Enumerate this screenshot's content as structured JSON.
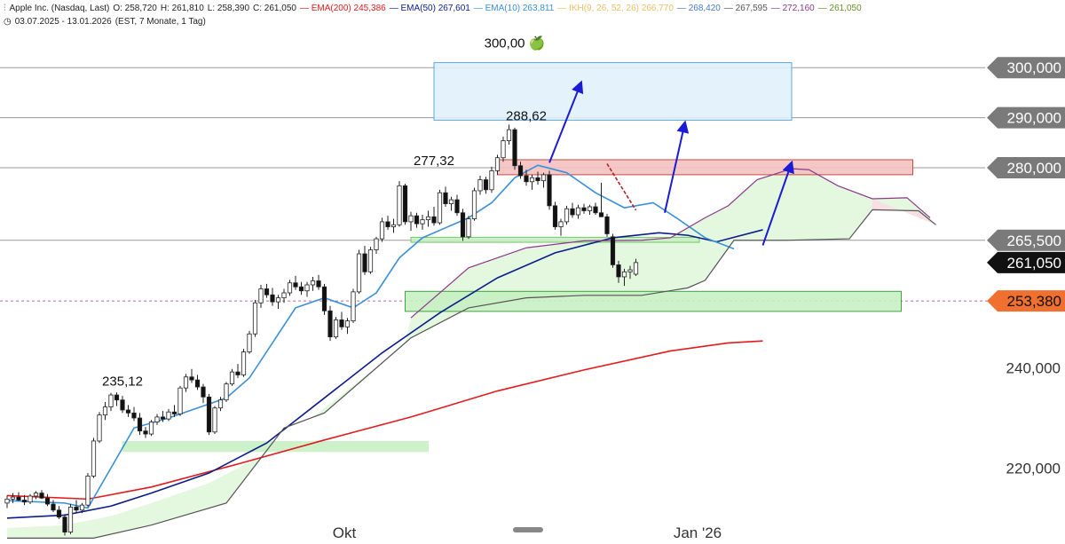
{
  "header": {
    "instrument": "Apple Inc. (Nasdaq, Last)",
    "open": "O: 258,720",
    "high": "H: 261,810",
    "low": "L: 258,390",
    "close": "C: 261,050",
    "indicators": [
      {
        "label": "EMA(200)",
        "value": "245,386",
        "color": "#e31a1c"
      },
      {
        "label": "EMA(50)",
        "value": "267,601",
        "color": "#0c1d8a"
      },
      {
        "label": "EMA(10)",
        "value": "263,811",
        "color": "#3a8fd9"
      },
      {
        "label": "IKH(9, 26, 52, 26)",
        "value": "266,770",
        "color": "#e8c067"
      },
      {
        "label": "268,420",
        "value": "",
        "color": "#4a7bc8"
      },
      {
        "label": "267,595",
        "value": "",
        "color": "#555555"
      },
      {
        "label": "272,160",
        "value": "",
        "color": "#8b3a8b"
      },
      {
        "label": "261,050",
        "value": "",
        "color": "#6a8f2a"
      }
    ],
    "range": "03.07.2025 - 13.01.2026",
    "settings": "(EST, 7 Monate, 1 Tag)"
  },
  "chart_data": {
    "type": "candlestick",
    "title": "Apple Inc. (Nasdaq, Last)",
    "ylim": [
      205,
      305
    ],
    "y_ticks": [
      {
        "label": "300,000",
        "value": 300,
        "style": "grey"
      },
      {
        "label": "290,000",
        "value": 290,
        "style": "grey"
      },
      {
        "label": "280,000",
        "value": 280,
        "style": "grey"
      },
      {
        "label": "265,500",
        "value": 265.5,
        "style": "grey"
      },
      {
        "label": "261,050",
        "value": 261.05,
        "style": "black"
      },
      {
        "label": "253,380",
        "value": 253.38,
        "style": "orange"
      },
      {
        "label": "240,000",
        "value": 240,
        "style": "plain"
      },
      {
        "label": "220,000",
        "value": 220,
        "style": "plain"
      }
    ],
    "x_ticks": [
      "Okt",
      "Jan '26"
    ],
    "horizontal_lines": [
      300,
      290,
      280,
      265.5
    ],
    "annotations": [
      {
        "text": "300,00 🍏",
        "x": 88,
        "y": 304
      },
      {
        "text": "288,62",
        "x": 90,
        "y": 289.5
      },
      {
        "text": "277,32",
        "x": 74,
        "y": 280.5
      },
      {
        "text": "235,12",
        "x": 20,
        "y": 236.5
      }
    ],
    "zones": [
      {
        "name": "target",
        "x0": 74,
        "x1": 136,
        "y0": 289.5,
        "y1": 301,
        "color": "#e2f1fb",
        "stroke": "#4aa3df"
      },
      {
        "name": "resistance",
        "x0": 85,
        "x1": 157,
        "y0": 278.6,
        "y1": 281.6,
        "color": "#f4c2c2",
        "stroke": "#c0392b"
      },
      {
        "name": "support-upper",
        "x0": 70,
        "x1": 120,
        "y0": 265.1,
        "y1": 266.1,
        "color": "#c8f0c3",
        "stroke": "#6abf5e"
      },
      {
        "name": "support-lower",
        "x0": 69,
        "x1": 155,
        "y0": 251.3,
        "y1": 255.3,
        "color": "#c8f0c3",
        "stroke": "#2e9a2e"
      },
      {
        "name": "old-support",
        "x0": 20,
        "x1": 73,
        "y0": 223.3,
        "y1": 225.3,
        "color": "#c8f0c3",
        "stroke": "#c8f0c3"
      }
    ],
    "arrows": [
      {
        "x0": 94,
        "y0": 281,
        "x1": 99.5,
        "y1": 297,
        "color": "#1b1bd6"
      },
      {
        "x0": 114,
        "y0": 271,
        "x1": 117.5,
        "y1": 289,
        "color": "#1b1bd6"
      },
      {
        "x0": 131,
        "y0": 264.5,
        "x1": 136,
        "y1": 281,
        "color": "#1b1bd6"
      }
    ],
    "candles": [
      [
        213.0,
        214.5,
        212.0,
        213.8
      ],
      [
        213.8,
        215.0,
        213.0,
        214.2
      ],
      [
        214.2,
        215.2,
        213.4,
        213.6
      ],
      [
        213.6,
        214.6,
        212.6,
        213.2
      ],
      [
        213.2,
        214.8,
        212.8,
        214.4
      ],
      [
        214.4,
        215.4,
        213.8,
        215.0
      ],
      [
        215.0,
        215.6,
        213.8,
        214.0
      ],
      [
        214.0,
        214.8,
        212.4,
        212.8
      ],
      [
        212.8,
        213.6,
        211.2,
        211.6
      ],
      [
        211.6,
        212.4,
        209.8,
        210.2
      ],
      [
        210.2,
        210.8,
        206.5,
        207.2
      ],
      [
        207.2,
        212.8,
        206.8,
        212.2
      ],
      [
        212.2,
        213.6,
        211.0,
        211.6
      ],
      [
        211.6,
        213.0,
        211.0,
        212.6
      ],
      [
        212.6,
        219.0,
        212.2,
        218.4
      ],
      [
        218.4,
        226.0,
        218.0,
        225.4
      ],
      [
        225.4,
        231.2,
        225.0,
        230.6
      ],
      [
        230.6,
        233.2,
        229.6,
        232.2
      ],
      [
        232.2,
        235.0,
        231.4,
        234.6
      ],
      [
        234.6,
        235.12,
        232.4,
        233.6
      ],
      [
        233.6,
        234.4,
        231.0,
        231.6
      ],
      [
        231.6,
        232.6,
        230.2,
        231.0
      ],
      [
        231.0,
        232.2,
        229.4,
        230.0
      ],
      [
        230.0,
        231.0,
        226.6,
        227.4
      ],
      [
        227.4,
        228.2,
        226.0,
        226.8
      ],
      [
        226.8,
        229.6,
        226.4,
        229.2
      ],
      [
        229.2,
        230.8,
        228.6,
        230.2
      ],
      [
        230.2,
        231.4,
        229.2,
        229.8
      ],
      [
        229.8,
        231.8,
        229.4,
        231.2
      ],
      [
        231.2,
        232.6,
        230.2,
        230.8
      ],
      [
        230.8,
        236.4,
        230.4,
        236.0
      ],
      [
        236.0,
        238.8,
        235.2,
        238.2
      ],
      [
        238.2,
        239.8,
        237.0,
        237.6
      ],
      [
        237.6,
        238.6,
        235.6,
        236.2
      ],
      [
        236.2,
        236.8,
        233.0,
        234.2
      ],
      [
        234.2,
        234.8,
        226.6,
        227.2
      ],
      [
        227.2,
        232.4,
        226.8,
        232.0
      ],
      [
        232.0,
        234.2,
        231.4,
        233.6
      ],
      [
        233.6,
        237.2,
        233.2,
        236.8
      ],
      [
        236.8,
        239.8,
        236.4,
        239.2
      ],
      [
        239.2,
        240.8,
        238.0,
        238.6
      ],
      [
        238.6,
        243.8,
        238.2,
        243.2
      ],
      [
        243.2,
        247.4,
        242.8,
        246.8
      ],
      [
        246.8,
        253.6,
        246.2,
        253.0
      ],
      [
        253.0,
        256.6,
        252.0,
        255.8
      ],
      [
        255.8,
        256.8,
        254.0,
        254.6
      ],
      [
        254.6,
        256.0,
        252.4,
        253.2
      ],
      [
        253.2,
        254.6,
        251.8,
        254.0
      ],
      [
        254.0,
        255.8,
        253.0,
        255.0
      ],
      [
        255.0,
        257.6,
        254.4,
        257.0
      ],
      [
        257.0,
        258.4,
        255.6,
        256.2
      ],
      [
        256.2,
        257.2,
        254.6,
        255.4
      ],
      [
        255.4,
        257.2,
        254.2,
        256.6
      ],
      [
        256.6,
        258.2,
        255.4,
        257.4
      ],
      [
        257.4,
        258.6,
        255.6,
        256.2
      ],
      [
        256.2,
        256.8,
        250.6,
        251.4
      ],
      [
        251.4,
        252.4,
        245.4,
        246.2
      ],
      [
        246.2,
        250.2,
        245.8,
        249.6
      ],
      [
        249.6,
        251.2,
        247.6,
        248.2
      ],
      [
        248.2,
        250.0,
        246.8,
        249.4
      ],
      [
        249.4,
        255.8,
        249.0,
        255.2
      ],
      [
        255.2,
        263.6,
        254.8,
        262.8
      ],
      [
        262.8,
        264.4,
        258.6,
        259.2
      ],
      [
        259.2,
        264.2,
        258.8,
        263.6
      ],
      [
        263.6,
        266.2,
        262.8,
        265.8
      ],
      [
        265.8,
        270.0,
        265.2,
        269.2
      ],
      [
        269.2,
        270.4,
        267.6,
        268.2
      ],
      [
        268.2,
        269.8,
        267.0,
        268.6
      ],
      [
        268.6,
        277.32,
        268.2,
        276.4
      ],
      [
        276.4,
        276.8,
        268.6,
        269.2
      ],
      [
        269.2,
        271.2,
        267.4,
        270.4
      ],
      [
        270.4,
        271.0,
        268.0,
        268.8
      ],
      [
        268.8,
        270.6,
        267.6,
        269.6
      ],
      [
        269.6,
        271.4,
        268.2,
        270.2
      ],
      [
        270.2,
        272.2,
        268.4,
        269.0
      ],
      [
        269.0,
        275.6,
        268.6,
        275.0
      ],
      [
        275.0,
        276.2,
        272.2,
        272.8
      ],
      [
        272.8,
        274.2,
        271.4,
        273.6
      ],
      [
        273.6,
        274.6,
        270.4,
        271.0
      ],
      [
        271.0,
        271.8,
        265.4,
        266.2
      ],
      [
        266.2,
        270.4,
        265.8,
        269.8
      ],
      [
        269.8,
        276.0,
        269.4,
        275.4
      ],
      [
        275.4,
        278.4,
        274.6,
        277.6
      ],
      [
        277.6,
        278.2,
        274.8,
        275.6
      ],
      [
        275.6,
        280.2,
        275.0,
        279.4
      ],
      [
        279.4,
        282.6,
        278.6,
        282.0
      ],
      [
        282.0,
        286.2,
        281.2,
        285.4
      ],
      [
        285.4,
        288.62,
        284.6,
        287.6
      ],
      [
        287.6,
        288.0,
        279.6,
        280.4
      ],
      [
        280.4,
        281.2,
        277.8,
        278.4
      ],
      [
        278.4,
        279.6,
        276.4,
        277.2
      ],
      [
        277.2,
        278.6,
        275.6,
        278.0
      ],
      [
        278.0,
        279.2,
        276.6,
        277.4
      ],
      [
        277.4,
        279.0,
        276.0,
        278.6
      ],
      [
        278.6,
        279.4,
        271.6,
        272.4
      ],
      [
        272.4,
        273.2,
        267.6,
        268.2
      ],
      [
        268.2,
        269.8,
        266.4,
        269.2
      ],
      [
        269.2,
        272.4,
        268.6,
        271.8
      ],
      [
        271.8,
        273.0,
        270.0,
        270.6
      ],
      [
        270.6,
        272.6,
        269.8,
        272.0
      ],
      [
        272.0,
        272.8,
        270.8,
        271.4
      ],
      [
        271.4,
        272.6,
        270.6,
        272.2
      ],
      [
        272.2,
        273.0,
        270.6,
        271.0
      ],
      [
        271.0,
        277.0,
        270.6,
        270.2
      ],
      [
        270.2,
        270.8,
        266.2,
        266.8
      ],
      [
        266.2,
        266.8,
        260.0,
        260.6
      ],
      [
        260.6,
        261.4,
        257.0,
        258.2
      ],
      [
        258.2,
        259.8,
        256.4,
        259.2
      ],
      [
        259.2,
        260.4,
        257.8,
        259.6
      ],
      [
        258.72,
        261.81,
        258.39,
        261.05
      ]
    ],
    "series": [
      {
        "name": "EMA(200)",
        "color": "#e31a1c",
        "points": [
          [
            0,
            214.5
          ],
          [
            14,
            213.8
          ],
          [
            25,
            216.2
          ],
          [
            40,
            220.8
          ],
          [
            55,
            225.6
          ],
          [
            70,
            230.2
          ],
          [
            85,
            235.4
          ],
          [
            100,
            239.6
          ],
          [
            115,
            243.4
          ],
          [
            125,
            245.0
          ],
          [
            131,
            245.39
          ]
        ]
      },
      {
        "name": "EMA(50)",
        "color": "#0c1d8a",
        "points": [
          [
            0,
            210.0
          ],
          [
            10,
            210.6
          ],
          [
            18,
            212.4
          ],
          [
            25,
            215.0
          ],
          [
            35,
            219.0
          ],
          [
            45,
            225.0
          ],
          [
            55,
            234.0
          ],
          [
            65,
            243.0
          ],
          [
            75,
            251.0
          ],
          [
            85,
            258.0
          ],
          [
            95,
            263.0
          ],
          [
            105,
            266.0
          ],
          [
            113,
            267.0
          ],
          [
            118,
            266.5
          ],
          [
            123,
            265.2
          ],
          [
            131,
            267.6
          ]
        ]
      },
      {
        "name": "EMA(10)",
        "color": "#3a8fd9",
        "points": [
          [
            0,
            213.5
          ],
          [
            10,
            213.0
          ],
          [
            14,
            212.0
          ],
          [
            18,
            220.0
          ],
          [
            22,
            228.0
          ],
          [
            28,
            230.0
          ],
          [
            33,
            232.0
          ],
          [
            38,
            234.0
          ],
          [
            42,
            238.0
          ],
          [
            46,
            245.0
          ],
          [
            50,
            252.0
          ],
          [
            55,
            254.0
          ],
          [
            60,
            252.0
          ],
          [
            64,
            255.0
          ],
          [
            68,
            262.0
          ],
          [
            72,
            266.0
          ],
          [
            76,
            268.0
          ],
          [
            80,
            270.0
          ],
          [
            84,
            273.0
          ],
          [
            88,
            278.0
          ],
          [
            92,
            280.5
          ],
          [
            97,
            279.0
          ],
          [
            102,
            275.0
          ],
          [
            107,
            272.0
          ],
          [
            112,
            273.0
          ],
          [
            116,
            270.0
          ],
          [
            121,
            266.0
          ],
          [
            126,
            263.8
          ]
        ]
      },
      {
        "name": "Kumo upper",
        "color": "#8b3a8b",
        "points": [
          [
            70,
            250.0
          ],
          [
            80,
            260.0
          ],
          [
            90,
            264.0
          ],
          [
            100,
            265.4
          ],
          [
            110,
            265.5
          ],
          [
            115,
            266.0
          ],
          [
            121,
            270.0
          ],
          [
            125,
            272.4
          ],
          [
            130,
            277.6
          ],
          [
            136,
            279.8
          ],
          [
            139,
            279.6
          ],
          [
            144,
            276.4
          ],
          [
            150,
            273.8
          ],
          [
            156,
            274.0
          ],
          [
            160,
            270.0
          ]
        ]
      },
      {
        "name": "Kumo lower",
        "color": "#555555",
        "points": [
          [
            0,
            206.0
          ],
          [
            15,
            206.0
          ],
          [
            25,
            208.6
          ],
          [
            38,
            213.0
          ],
          [
            48,
            228.0
          ],
          [
            55,
            231.0
          ],
          [
            62,
            238.0
          ],
          [
            70,
            246.0
          ],
          [
            80,
            252.0
          ],
          [
            90,
            254.0
          ],
          [
            100,
            254.5
          ],
          [
            110,
            254.5
          ],
          [
            118,
            256.0
          ],
          [
            121,
            257.5
          ],
          [
            126,
            265.5
          ],
          [
            135,
            265.5
          ],
          [
            146,
            265.8
          ],
          [
            150,
            271.6
          ],
          [
            158,
            271.4
          ],
          [
            161,
            268.6
          ]
        ]
      }
    ]
  }
}
